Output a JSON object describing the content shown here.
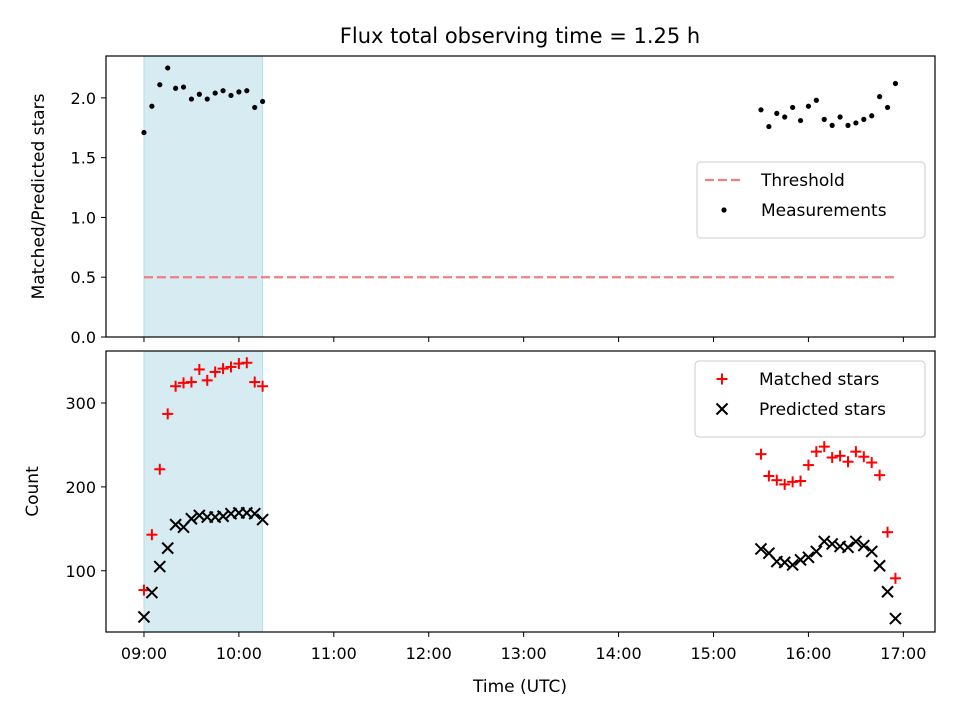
{
  "title": "Flux total observing time = 1.25 h",
  "xlabel": "Time (UTC)",
  "chart_data": [
    {
      "type": "scatter",
      "ylabel": "Matched/Predicted stars",
      "xlim": [
        "08:36",
        "17:20"
      ],
      "ylim": [
        0,
        2.35
      ],
      "yticks": [
        0.0,
        0.5,
        1.0,
        1.5,
        2.0
      ],
      "grid": false,
      "legend_position": "center-right",
      "shaded_interval": {
        "from": "09:00",
        "to": "10:15",
        "color": "#add8e6"
      },
      "threshold": {
        "name": "Threshold",
        "value": 0.5,
        "from": "09:00",
        "to": "16:55",
        "color": "#f08080",
        "style": "dashed"
      },
      "series": [
        {
          "name": "Measurements",
          "color": "#000000",
          "marker": "dot",
          "points": [
            [
              "09:00",
              1.71
            ],
            [
              "09:05",
              1.93
            ],
            [
              "09:10",
              2.11
            ],
            [
              "09:15",
              2.25
            ],
            [
              "09:20",
              2.08
            ],
            [
              "09:25",
              2.09
            ],
            [
              "09:30",
              1.99
            ],
            [
              "09:35",
              2.03
            ],
            [
              "09:40",
              1.99
            ],
            [
              "09:45",
              2.04
            ],
            [
              "09:50",
              2.06
            ],
            [
              "09:55",
              2.02
            ],
            [
              "10:00",
              2.05
            ],
            [
              "10:05",
              2.06
            ],
            [
              "10:10",
              1.92
            ],
            [
              "10:15",
              1.97
            ],
            [
              "15:30",
              1.9
            ],
            [
              "15:35",
              1.76
            ],
            [
              "15:40",
              1.87
            ],
            [
              "15:45",
              1.84
            ],
            [
              "15:50",
              1.92
            ],
            [
              "15:55",
              1.81
            ],
            [
              "16:00",
              1.93
            ],
            [
              "16:05",
              1.98
            ],
            [
              "16:10",
              1.82
            ],
            [
              "16:15",
              1.77
            ],
            [
              "16:20",
              1.84
            ],
            [
              "16:25",
              1.77
            ],
            [
              "16:30",
              1.79
            ],
            [
              "16:35",
              1.82
            ],
            [
              "16:40",
              1.85
            ],
            [
              "16:45",
              2.01
            ],
            [
              "16:50",
              1.92
            ],
            [
              "16:55",
              2.12
            ]
          ]
        }
      ]
    },
    {
      "type": "scatter",
      "ylabel": "Count",
      "xlim": [
        "08:36",
        "17:20"
      ],
      "ylim": [
        27,
        362
      ],
      "yticks": [
        100,
        200,
        300
      ],
      "xticks": [
        "09:00",
        "10:00",
        "11:00",
        "12:00",
        "13:00",
        "14:00",
        "15:00",
        "16:00",
        "17:00"
      ],
      "grid": false,
      "legend_position": "top-right",
      "shaded_interval": {
        "from": "09:00",
        "to": "10:15",
        "color": "#add8e6"
      },
      "series": [
        {
          "name": "Matched stars",
          "color": "#ff0000",
          "marker": "plus",
          "points": [
            [
              "09:00",
              77
            ],
            [
              "09:05",
              143
            ],
            [
              "09:10",
              221
            ],
            [
              "09:15",
              287
            ],
            [
              "09:20",
              320
            ],
            [
              "09:25",
              324
            ],
            [
              "09:30",
              325
            ],
            [
              "09:35",
              340
            ],
            [
              "09:40",
              327
            ],
            [
              "09:45",
              337
            ],
            [
              "09:50",
              341
            ],
            [
              "09:55",
              343
            ],
            [
              "10:00",
              347
            ],
            [
              "10:05",
              348
            ],
            [
              "10:10",
              325
            ],
            [
              "10:15",
              320
            ],
            [
              "15:30",
              239
            ],
            [
              "15:35",
              213
            ],
            [
              "15:40",
              208
            ],
            [
              "15:45",
              203
            ],
            [
              "15:50",
              206
            ],
            [
              "15:55",
              207
            ],
            [
              "16:00",
              226
            ],
            [
              "16:05",
              242
            ],
            [
              "16:10",
              248
            ],
            [
              "16:15",
              235
            ],
            [
              "16:20",
              237
            ],
            [
              "16:25",
              230
            ],
            [
              "16:30",
              242
            ],
            [
              "16:35",
              236
            ],
            [
              "16:40",
              229
            ],
            [
              "16:45",
              214
            ],
            [
              "16:50",
              146
            ],
            [
              "16:55",
              91
            ]
          ]
        },
        {
          "name": "Predicted stars",
          "color": "#000000",
          "marker": "x",
          "points": [
            [
              "09:00",
              45
            ],
            [
              "09:05",
              74
            ],
            [
              "09:10",
              105
            ],
            [
              "09:15",
              127
            ],
            [
              "09:20",
              155
            ],
            [
              "09:25",
              152
            ],
            [
              "09:30",
              162
            ],
            [
              "09:35",
              166
            ],
            [
              "09:40",
              164
            ],
            [
              "09:45",
              164
            ],
            [
              "09:50",
              165
            ],
            [
              "09:55",
              168
            ],
            [
              "10:00",
              169
            ],
            [
              "10:05",
              169
            ],
            [
              "10:10",
              168
            ],
            [
              "10:15",
              161
            ],
            [
              "15:30",
              126
            ],
            [
              "15:35",
              121
            ],
            [
              "15:40",
              111
            ],
            [
              "15:45",
              110
            ],
            [
              "15:50",
              107
            ],
            [
              "15:55",
              113
            ],
            [
              "16:00",
              116
            ],
            [
              "16:05",
              123
            ],
            [
              "16:10",
              135
            ],
            [
              "16:15",
              132
            ],
            [
              "16:20",
              129
            ],
            [
              "16:25",
              128
            ],
            [
              "16:30",
              135
            ],
            [
              "16:35",
              130
            ],
            [
              "16:40",
              123
            ],
            [
              "16:45",
              106
            ],
            [
              "16:50",
              75
            ],
            [
              "16:55",
              43
            ]
          ]
        }
      ]
    }
  ]
}
